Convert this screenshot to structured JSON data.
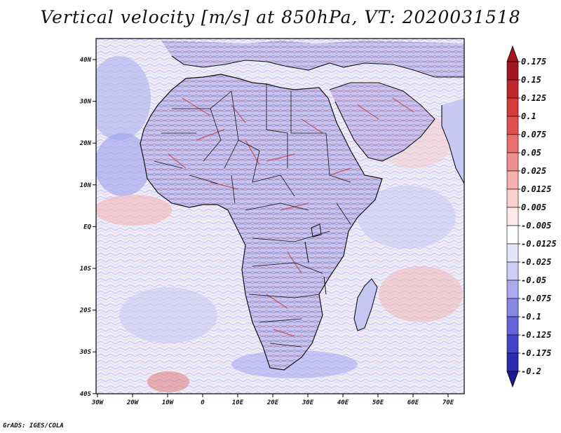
{
  "title": "Vertical velocity [m/s] at 850hPa, VT: 2020031518",
  "credit": "GrADS: IGES/COLA",
  "map": {
    "lat_labels": [
      "40N",
      "30N",
      "20N",
      "10N",
      "EQ",
      "10S",
      "20S",
      "30S",
      "40S"
    ],
    "lon_labels": [
      "30W",
      "20W",
      "10W",
      "0",
      "10E",
      "20E",
      "30E",
      "40E",
      "50E",
      "60E",
      "70E"
    ],
    "lon_range": [
      -30,
      75
    ],
    "lat_range": [
      -40,
      45
    ]
  },
  "colorbar": {
    "labels": [
      "0.175",
      "0.15",
      "0.125",
      "0.1",
      "0.075",
      "0.05",
      "0.025",
      "0.0125",
      "0.005",
      "-0.005",
      "-0.0125",
      "-0.025",
      "-0.05",
      "-0.075",
      "-0.1",
      "-0.125",
      "-0.175",
      "-0.2"
    ],
    "colors": [
      "#a31621",
      "#c0262c",
      "#d63a3a",
      "#e25151",
      "#ea6f6f",
      "#f08f8f",
      "#f5b0b0",
      "#f9cfcf",
      "#fde9e9",
      "#ffffff",
      "#e6e6fb",
      "#cdcdf5",
      "#aaaaee",
      "#8888e4",
      "#6464d8",
      "#4444c8",
      "#2b2bb0",
      "#1a1a8e"
    ]
  }
}
